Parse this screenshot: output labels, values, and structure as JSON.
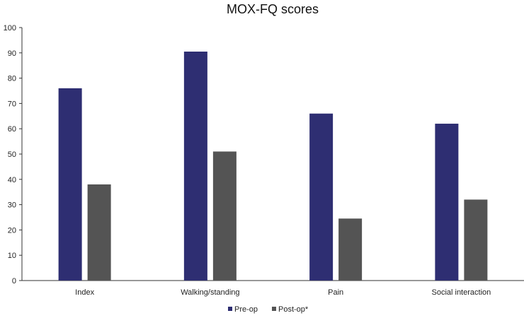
{
  "chart_data": {
    "type": "bar",
    "title": "MOX-FQ scores",
    "xlabel": "",
    "ylabel": "",
    "categories": [
      "Index",
      "Walking/standing",
      "Pain",
      "Social interaction"
    ],
    "series": [
      {
        "name": "Pre-op",
        "color": "#2e2e72",
        "values": [
          76,
          90.5,
          66,
          62
        ]
      },
      {
        "name": "Post-op*",
        "color": "#545454",
        "values": [
          38,
          51,
          24.5,
          32
        ]
      }
    ],
    "ylim": [
      0,
      100
    ],
    "yticks": [
      0,
      10,
      20,
      30,
      40,
      50,
      60,
      70,
      80,
      90,
      100
    ],
    "grid": false,
    "legend_position": "bottom-center"
  }
}
